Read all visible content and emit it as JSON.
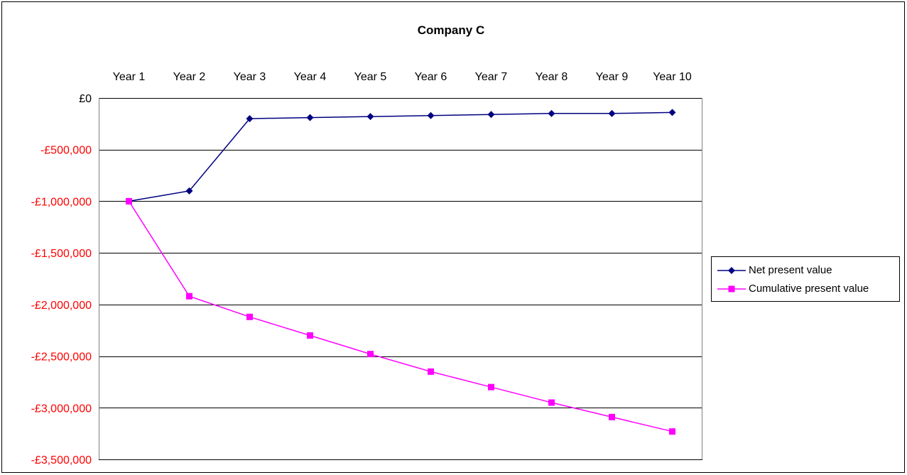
{
  "chart_data": {
    "type": "line",
    "title": "Company C",
    "xlabel": "",
    "ylabel": "",
    "categories": [
      "Year 1",
      "Year 2",
      "Year 3",
      "Year 4",
      "Year 5",
      "Year 6",
      "Year 7",
      "Year 8",
      "Year 9",
      "Year 10"
    ],
    "ylim": [
      -3500000,
      0
    ],
    "y_ticks": [
      0,
      -500000,
      -1000000,
      -1500000,
      -2000000,
      -2500000,
      -3000000,
      -3500000
    ],
    "y_tick_labels": [
      "£0",
      "-£500,000",
      "-£1,000,000",
      "-£1,500,000",
      "-£2,000,000",
      "-£2,500,000",
      "-£3,000,000",
      "-£3,500,000"
    ],
    "x_axis_position": "top",
    "grid": true,
    "legend_position": "right",
    "series": [
      {
        "name": "Net present value",
        "color": "#000080",
        "marker": "diamond",
        "values": [
          -1000000,
          -900000,
          -200000,
          -190000,
          -180000,
          -170000,
          -160000,
          -150000,
          -150000,
          -140000
        ]
      },
      {
        "name": "Cumulative present value",
        "color": "#ff00ff",
        "marker": "square",
        "values": [
          -1000000,
          -1920000,
          -2120000,
          -2300000,
          -2480000,
          -2650000,
          -2800000,
          -2950000,
          -3090000,
          -3230000
        ]
      }
    ],
    "colors": {
      "negative_label": "#ff0000",
      "zero_label": "#000000",
      "gridline": "#000000"
    }
  }
}
